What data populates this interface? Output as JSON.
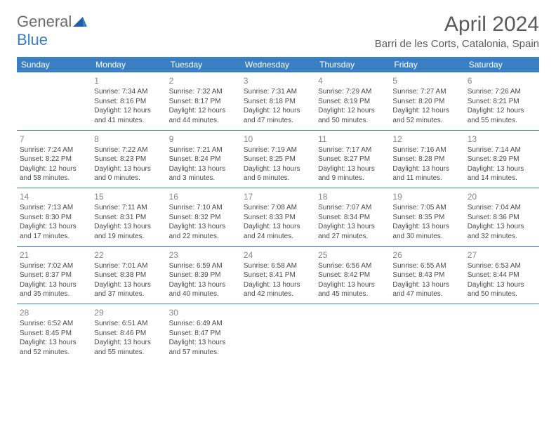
{
  "brand": {
    "general": "General",
    "blue": "Blue"
  },
  "title": "April 2024",
  "location": "Barri de les Corts, Catalonia, Spain",
  "colors": {
    "accent": "#3a7fc4",
    "text": "#4a4a4a",
    "muted": "#888888",
    "bg": "#ffffff",
    "logo_gray": "#6b6b6b"
  },
  "day_headers": [
    "Sunday",
    "Monday",
    "Tuesday",
    "Wednesday",
    "Thursday",
    "Friday",
    "Saturday"
  ],
  "weeks": [
    [
      null,
      {
        "n": "1",
        "sr": "Sunrise: 7:34 AM",
        "ss": "Sunset: 8:16 PM",
        "d1": "Daylight: 12 hours",
        "d2": "and 41 minutes."
      },
      {
        "n": "2",
        "sr": "Sunrise: 7:32 AM",
        "ss": "Sunset: 8:17 PM",
        "d1": "Daylight: 12 hours",
        "d2": "and 44 minutes."
      },
      {
        "n": "3",
        "sr": "Sunrise: 7:31 AM",
        "ss": "Sunset: 8:18 PM",
        "d1": "Daylight: 12 hours",
        "d2": "and 47 minutes."
      },
      {
        "n": "4",
        "sr": "Sunrise: 7:29 AM",
        "ss": "Sunset: 8:19 PM",
        "d1": "Daylight: 12 hours",
        "d2": "and 50 minutes."
      },
      {
        "n": "5",
        "sr": "Sunrise: 7:27 AM",
        "ss": "Sunset: 8:20 PM",
        "d1": "Daylight: 12 hours",
        "d2": "and 52 minutes."
      },
      {
        "n": "6",
        "sr": "Sunrise: 7:26 AM",
        "ss": "Sunset: 8:21 PM",
        "d1": "Daylight: 12 hours",
        "d2": "and 55 minutes."
      }
    ],
    [
      {
        "n": "7",
        "sr": "Sunrise: 7:24 AM",
        "ss": "Sunset: 8:22 PM",
        "d1": "Daylight: 12 hours",
        "d2": "and 58 minutes."
      },
      {
        "n": "8",
        "sr": "Sunrise: 7:22 AM",
        "ss": "Sunset: 8:23 PM",
        "d1": "Daylight: 13 hours",
        "d2": "and 0 minutes."
      },
      {
        "n": "9",
        "sr": "Sunrise: 7:21 AM",
        "ss": "Sunset: 8:24 PM",
        "d1": "Daylight: 13 hours",
        "d2": "and 3 minutes."
      },
      {
        "n": "10",
        "sr": "Sunrise: 7:19 AM",
        "ss": "Sunset: 8:25 PM",
        "d1": "Daylight: 13 hours",
        "d2": "and 6 minutes."
      },
      {
        "n": "11",
        "sr": "Sunrise: 7:17 AM",
        "ss": "Sunset: 8:27 PM",
        "d1": "Daylight: 13 hours",
        "d2": "and 9 minutes."
      },
      {
        "n": "12",
        "sr": "Sunrise: 7:16 AM",
        "ss": "Sunset: 8:28 PM",
        "d1": "Daylight: 13 hours",
        "d2": "and 11 minutes."
      },
      {
        "n": "13",
        "sr": "Sunrise: 7:14 AM",
        "ss": "Sunset: 8:29 PM",
        "d1": "Daylight: 13 hours",
        "d2": "and 14 minutes."
      }
    ],
    [
      {
        "n": "14",
        "sr": "Sunrise: 7:13 AM",
        "ss": "Sunset: 8:30 PM",
        "d1": "Daylight: 13 hours",
        "d2": "and 17 minutes."
      },
      {
        "n": "15",
        "sr": "Sunrise: 7:11 AM",
        "ss": "Sunset: 8:31 PM",
        "d1": "Daylight: 13 hours",
        "d2": "and 19 minutes."
      },
      {
        "n": "16",
        "sr": "Sunrise: 7:10 AM",
        "ss": "Sunset: 8:32 PM",
        "d1": "Daylight: 13 hours",
        "d2": "and 22 minutes."
      },
      {
        "n": "17",
        "sr": "Sunrise: 7:08 AM",
        "ss": "Sunset: 8:33 PM",
        "d1": "Daylight: 13 hours",
        "d2": "and 24 minutes."
      },
      {
        "n": "18",
        "sr": "Sunrise: 7:07 AM",
        "ss": "Sunset: 8:34 PM",
        "d1": "Daylight: 13 hours",
        "d2": "and 27 minutes."
      },
      {
        "n": "19",
        "sr": "Sunrise: 7:05 AM",
        "ss": "Sunset: 8:35 PM",
        "d1": "Daylight: 13 hours",
        "d2": "and 30 minutes."
      },
      {
        "n": "20",
        "sr": "Sunrise: 7:04 AM",
        "ss": "Sunset: 8:36 PM",
        "d1": "Daylight: 13 hours",
        "d2": "and 32 minutes."
      }
    ],
    [
      {
        "n": "21",
        "sr": "Sunrise: 7:02 AM",
        "ss": "Sunset: 8:37 PM",
        "d1": "Daylight: 13 hours",
        "d2": "and 35 minutes."
      },
      {
        "n": "22",
        "sr": "Sunrise: 7:01 AM",
        "ss": "Sunset: 8:38 PM",
        "d1": "Daylight: 13 hours",
        "d2": "and 37 minutes."
      },
      {
        "n": "23",
        "sr": "Sunrise: 6:59 AM",
        "ss": "Sunset: 8:39 PM",
        "d1": "Daylight: 13 hours",
        "d2": "and 40 minutes."
      },
      {
        "n": "24",
        "sr": "Sunrise: 6:58 AM",
        "ss": "Sunset: 8:41 PM",
        "d1": "Daylight: 13 hours",
        "d2": "and 42 minutes."
      },
      {
        "n": "25",
        "sr": "Sunrise: 6:56 AM",
        "ss": "Sunset: 8:42 PM",
        "d1": "Daylight: 13 hours",
        "d2": "and 45 minutes."
      },
      {
        "n": "26",
        "sr": "Sunrise: 6:55 AM",
        "ss": "Sunset: 8:43 PM",
        "d1": "Daylight: 13 hours",
        "d2": "and 47 minutes."
      },
      {
        "n": "27",
        "sr": "Sunrise: 6:53 AM",
        "ss": "Sunset: 8:44 PM",
        "d1": "Daylight: 13 hours",
        "d2": "and 50 minutes."
      }
    ],
    [
      {
        "n": "28",
        "sr": "Sunrise: 6:52 AM",
        "ss": "Sunset: 8:45 PM",
        "d1": "Daylight: 13 hours",
        "d2": "and 52 minutes."
      },
      {
        "n": "29",
        "sr": "Sunrise: 6:51 AM",
        "ss": "Sunset: 8:46 PM",
        "d1": "Daylight: 13 hours",
        "d2": "and 55 minutes."
      },
      {
        "n": "30",
        "sr": "Sunrise: 6:49 AM",
        "ss": "Sunset: 8:47 PM",
        "d1": "Daylight: 13 hours",
        "d2": "and 57 minutes."
      },
      null,
      null,
      null,
      null
    ]
  ]
}
